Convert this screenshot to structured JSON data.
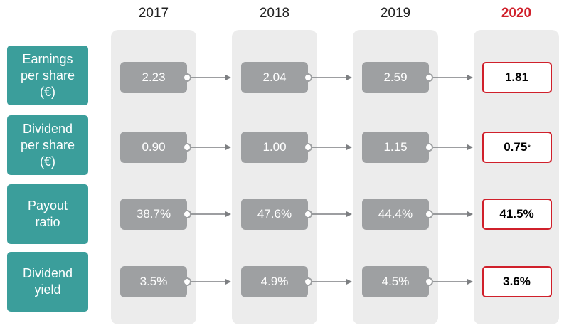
{
  "years": [
    "2017",
    "2018",
    "2019",
    "2020"
  ],
  "highlight_color": "#d0202b",
  "label_color": "#3b9e9b",
  "rows": [
    {
      "label": "Earnings\nper share\n(€)",
      "values": [
        "2.23",
        "2.04",
        "2.59"
      ],
      "current": "1.81",
      "note": ""
    },
    {
      "label": "Dividend\nper share\n(€)",
      "values": [
        "0.90",
        "1.00",
        "1.15"
      ],
      "current": "0.75",
      "note": "*"
    },
    {
      "label": "Payout\nratio",
      "values": [
        "38.7%",
        "47.6%",
        "44.4%"
      ],
      "current": "41.5%",
      "note": ""
    },
    {
      "label": "Dividend\nyield",
      "values": [
        "3.5%",
        "4.9%",
        "4.5%"
      ],
      "current": "3.6%",
      "note": ""
    }
  ]
}
